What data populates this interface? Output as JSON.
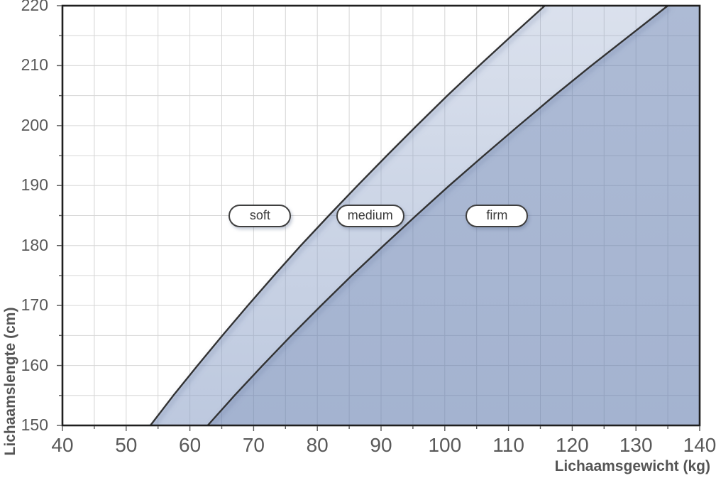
{
  "chart_data": {
    "type": "area",
    "title": "",
    "xlabel": "Lichaamsgewicht (kg)",
    "ylabel": "Lichaamslengte (cm)",
    "xlim": [
      40,
      140
    ],
    "ylim": [
      150,
      220
    ],
    "x_ticks": [
      40,
      50,
      60,
      70,
      80,
      90,
      100,
      110,
      120,
      130,
      140
    ],
    "y_ticks": [
      150,
      160,
      170,
      180,
      190,
      200,
      210,
      220
    ],
    "grid": true,
    "grid_minor_step": 5,
    "legend_position": "none",
    "heights_cm": [
      150,
      155,
      160,
      165,
      170,
      175,
      180,
      185,
      190,
      195,
      200,
      205,
      210,
      215,
      220
    ],
    "series": [
      {
        "name": "soft-medium-boundary",
        "weights_kg": [
          53.8,
          57.4,
          61.2,
          65.1,
          69.1,
          73.2,
          77.4,
          81.8,
          86.3,
          90.9,
          95.6,
          100.4,
          105.4,
          110.5,
          115.7
        ]
      },
      {
        "name": "medium-firm-boundary",
        "weights_kg": [
          62.8,
          67.0,
          71.4,
          75.9,
          80.6,
          85.4,
          90.4,
          95.5,
          100.7,
          106.1,
          111.6,
          117.2,
          123.0,
          129.0,
          135.0
        ]
      }
    ],
    "regions": [
      {
        "label": "soft",
        "description": "area left of first boundary (white)"
      },
      {
        "label": "medium",
        "description": "band between the two boundaries (light blue)"
      },
      {
        "label": "firm",
        "description": "area right of second boundary (medium blue)"
      }
    ],
    "annotations": [
      {
        "label": "soft",
        "x_kg": 71.0,
        "y_cm": 185
      },
      {
        "label": "medium",
        "x_kg": 88.3,
        "y_cm": 185
      },
      {
        "label": "firm",
        "x_kg": 108.2,
        "y_cm": 185
      }
    ]
  },
  "colors": {
    "background": "#ffffff",
    "grid": "#d6d6d6",
    "band_medium_base": "#8da1c7",
    "band_firm_base": "#627cae",
    "curve": "#333333",
    "plot_border": "#1f1f1f",
    "tick_mark": "#595959",
    "tick_text": "#595959",
    "axis_title_text": "#555555",
    "pill_border": "#3f3f3f",
    "pill_background": "#ffffff",
    "line_shadow": "#5a6d96"
  }
}
